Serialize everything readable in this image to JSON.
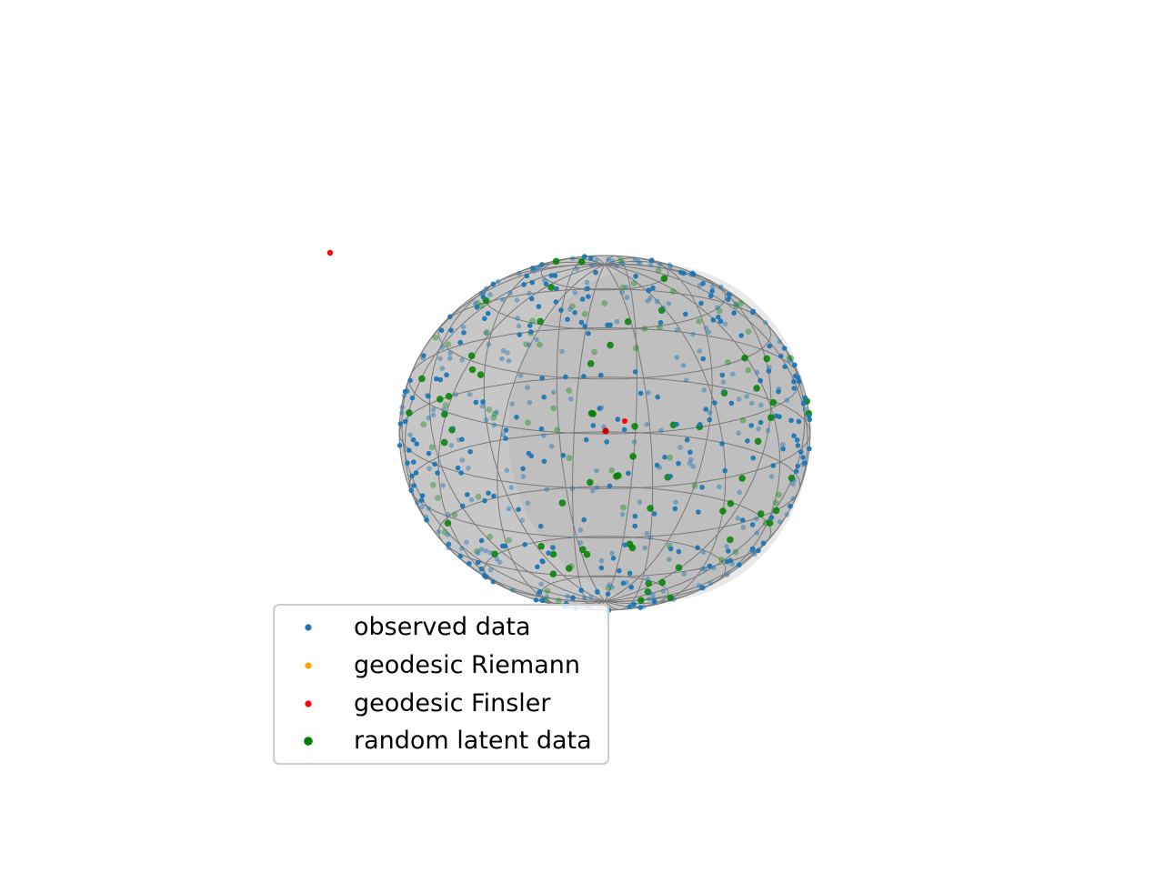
{
  "chart_data": {
    "type": "scatter",
    "projection": "3d",
    "axes_visible": false,
    "grid": false,
    "legend_placement": "lower-left",
    "surface": {
      "shape": "sphere wireframe",
      "face_color": "#bdbdbd",
      "edge_color": "#7a7a7a",
      "alpha": 0.85
    },
    "series": [
      {
        "name": "observed data",
        "color": "#1f77b4",
        "marker": "point",
        "count": 480
      },
      {
        "name": "geodesic Riemann",
        "color": "#ffa500",
        "marker": "point",
        "count": 0
      },
      {
        "name": "geodesic Finsler",
        "color": "#ff0000",
        "marker": "point",
        "count": 3
      },
      {
        "name": "random latent data",
        "color": "#008000",
        "marker": "circle",
        "count": 130
      }
    ]
  }
}
